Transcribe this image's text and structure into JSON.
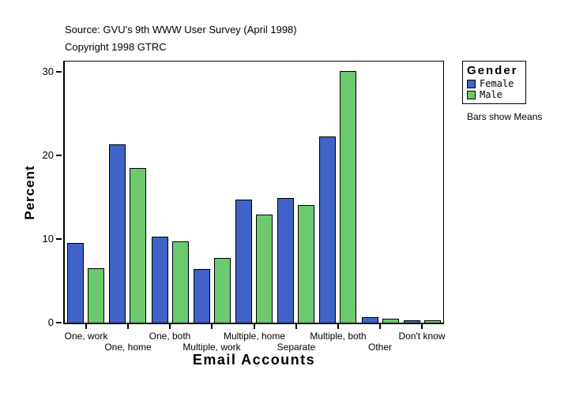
{
  "header": {
    "source": "Source: GVU's 9th WWW User Survey (April 1998)",
    "copyright": "Copyright 1998 GTRC"
  },
  "chart_data": {
    "type": "bar",
    "title": "",
    "xlabel": "Email Accounts",
    "ylabel": "Percent",
    "categories": [
      "One, work",
      "One, home",
      "One, both",
      "Multiple, work",
      "Multiple, home",
      "Separate",
      "Multiple, both",
      "Other",
      "Don't know"
    ],
    "series": [
      {
        "name": "Female",
        "color": "#3F63C6",
        "values": [
          9.5,
          21.3,
          10.3,
          6.4,
          14.7,
          14.9,
          22.2,
          0.7,
          0.3
        ]
      },
      {
        "name": "Male",
        "color": "#6BC96E",
        "values": [
          6.5,
          18.5,
          9.7,
          7.7,
          12.9,
          14.0,
          30.1,
          0.5,
          0.3
        ]
      }
    ],
    "ylim": [
      0,
      31.2
    ],
    "yticks": [
      0,
      10,
      20,
      30
    ],
    "grid": false,
    "legend": {
      "title": "Gender",
      "position": "outside-top-right"
    },
    "note": "Bars show Means"
  }
}
